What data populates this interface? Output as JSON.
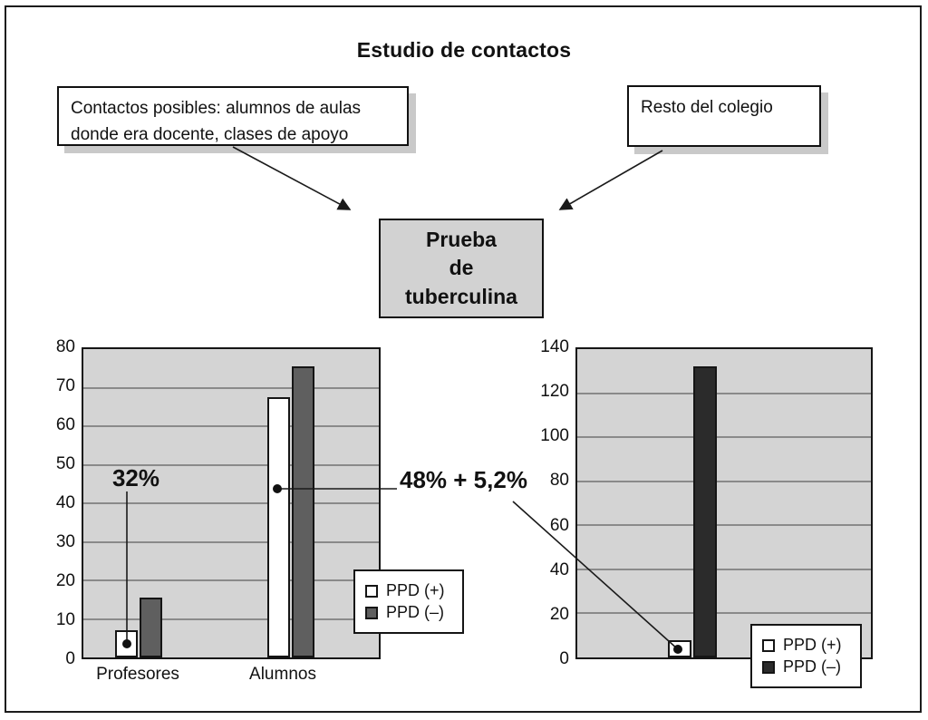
{
  "title": "Estudio de contactos",
  "diagram": {
    "left_box": "Contactos posibles: alumnos de aulas donde era docente, clases de apoyo",
    "right_box": "Resto del colegio",
    "center_box": "Prueba\nde\ntuberculina"
  },
  "annotations": {
    "profesores_pct": "32%",
    "alumnos_pct": "48% + 5,2%"
  },
  "colors": {
    "plot_background": "#d4d4d4",
    "grid": "#8a8a8a",
    "ppd_positive": "#ffffff",
    "ppd_negative_left": "#5f5f5f",
    "ppd_negative_right": "#2b2b2b",
    "callout_shadow": "#c9c9c9"
  },
  "chart_data": [
    {
      "type": "bar",
      "categories": [
        "Profesores",
        "Alumnos"
      ],
      "series": [
        {
          "name": "PPD (+)",
          "color": "#ffffff",
          "values": [
            7,
            67.5
          ]
        },
        {
          "name": "PPD (–)",
          "color": "#5f5f5f",
          "values": [
            15.5,
            75.5
          ]
        }
      ],
      "title": "",
      "xlabel": "",
      "ylabel": "",
      "ylim": [
        0,
        80
      ],
      "yticks": [
        0,
        10,
        20,
        30,
        40,
        50,
        60,
        70,
        80
      ],
      "grid": true,
      "legend_position": "inside-right"
    },
    {
      "type": "bar",
      "categories": [
        ""
      ],
      "series": [
        {
          "name": "PPD (+)",
          "color": "#ffffff",
          "values": [
            8
          ]
        },
        {
          "name": "PPD (–)",
          "color": "#2b2b2b",
          "values": [
            132
          ]
        }
      ],
      "title": "",
      "xlabel": "",
      "ylabel": "",
      "ylim": [
        0,
        140
      ],
      "yticks": [
        0,
        20,
        40,
        60,
        80,
        100,
        120,
        140
      ],
      "grid": true,
      "legend_position": "inside-bottom-right"
    }
  ]
}
